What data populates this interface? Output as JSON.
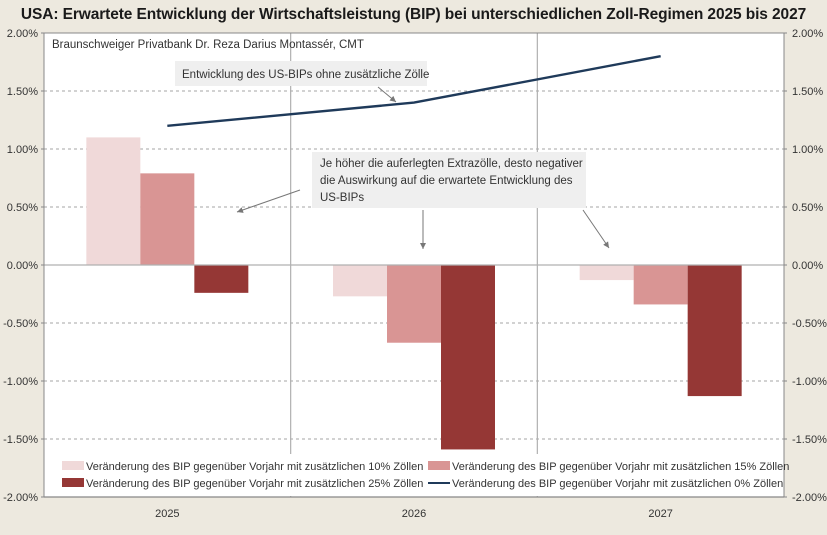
{
  "chart_data": {
    "type": "bar",
    "title": "USA: Erwartete Entwicklung der Wirtschaftsleistung (BIP) bei unterschiedlichen Zoll-Regimen 2025 bis 2027",
    "subtitle": "Braunschweiger  Privatbank  Dr. Reza Darius Montassér, CMT",
    "xlabel": "",
    "ylabel": "",
    "categories": [
      "2025",
      "2026",
      "2027"
    ],
    "ylim": [
      -2.0,
      2.0
    ],
    "yticks": [
      2.0,
      1.5,
      1.0,
      0.5,
      0.0,
      -0.5,
      -1.0,
      -1.5,
      -2.0
    ],
    "ytick_labels": [
      "2.00%",
      "1.50%",
      "1.00%",
      "0.50%",
      "0.00%",
      "-0.50%",
      "-1.00%",
      "-1.50%",
      "-2.00%"
    ],
    "secondary_y_axis": true,
    "grid": "horizontal dashed",
    "series": [
      {
        "name": "Veränderung des BIP gegenüber Vorjahr mit zusätzlichen 10% Zöllen",
        "type": "bar",
        "color": "#f0d9d9",
        "values": [
          1.1,
          -0.27,
          -0.13
        ]
      },
      {
        "name": "Veränderung des BIP gegenüber Vorjahr mit zusätzlichen 15% Zöllen",
        "type": "bar",
        "color": "#d99594",
        "values": [
          0.79,
          -0.67,
          -0.34
        ]
      },
      {
        "name": "Veränderung des BIP gegenüber Vorjahr mit zusätzlichen 25% Zöllen",
        "type": "bar",
        "color": "#953735",
        "values": [
          -0.24,
          -1.59,
          -1.13
        ]
      },
      {
        "name": "Veränderung des BIP gegenüber Vorjahr mit zusätzlichen 0% Zöllen",
        "type": "line",
        "color": "#1f3a5a",
        "values": [
          1.2,
          1.4,
          1.8
        ]
      }
    ],
    "legend": {
      "placement": "bottom-inside",
      "order": [
        0,
        1,
        2,
        3
      ]
    },
    "annotations": [
      {
        "id": "line-note",
        "text": [
          "Entwicklung des US-BIPs ohne zusätzliche Zölle"
        ]
      },
      {
        "id": "tariff-note",
        "text": [
          "Je höher die auferlegten Extrazölle, desto negativer",
          "die Auswirkung  auf die erwartete Entwicklung  des",
          "US-BIPs"
        ]
      }
    ]
  }
}
